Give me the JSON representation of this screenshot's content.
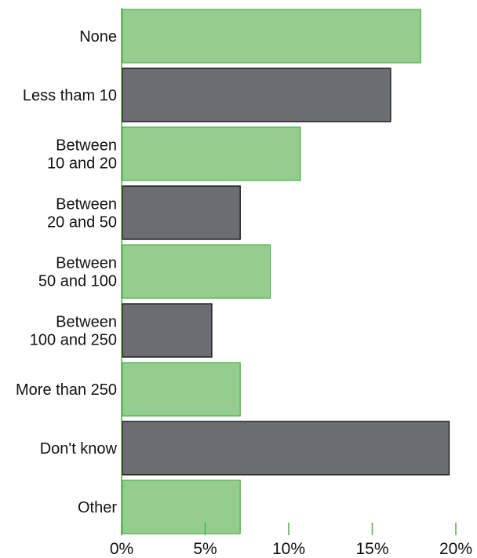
{
  "chart_data": {
    "type": "bar",
    "orientation": "horizontal",
    "title": "",
    "xlabel": "",
    "ylabel": "",
    "categories": [
      [
        "None"
      ],
      [
        "Less tham 10"
      ],
      [
        "Between",
        "10 and 20"
      ],
      [
        "Between",
        "20 and 50"
      ],
      [
        "Between",
        "50 and 100"
      ],
      [
        "Between",
        "100 and 250"
      ],
      [
        "More than 250"
      ],
      [
        "Don't know"
      ],
      [
        "Other"
      ]
    ],
    "values": [
      17.9,
      16.1,
      10.7,
      7.1,
      8.9,
      5.4,
      7.1,
      19.6,
      7.1
    ],
    "value_unit": "%",
    "xlim": [
      0,
      20
    ],
    "xticks": [
      0,
      5,
      10,
      15,
      20
    ],
    "xtick_labels": [
      "0%",
      "5%",
      "10%",
      "15%",
      "20%"
    ],
    "grid": false,
    "legend": "none",
    "colors": {
      "bar_fill_alternate": [
        "#95cd8f",
        "#6b6d70"
      ],
      "bar_stroke_alternate": [
        "#4fae4a",
        "#000000"
      ],
      "axis": "#4fae4a",
      "text": "#111111"
    }
  }
}
